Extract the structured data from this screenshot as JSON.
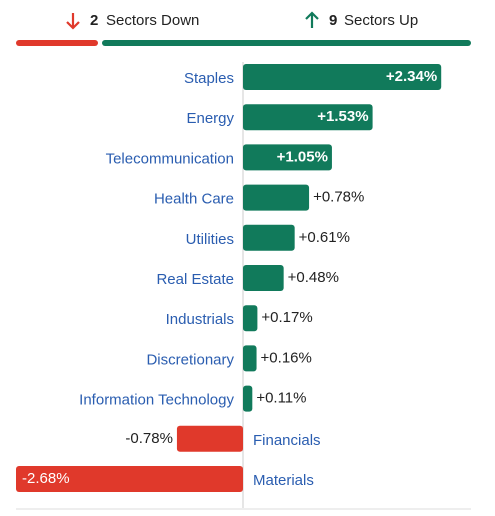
{
  "header": {
    "down": {
      "count": 2,
      "label": "Sectors Down",
      "color": "#e0392b"
    },
    "up": {
      "count": 9,
      "label": "Sectors Up",
      "color": "#117a5b"
    }
  },
  "chart_data": {
    "type": "bar",
    "orientation": "horizontal",
    "categories": [
      "Staples",
      "Energy",
      "Telecommunication",
      "Health Care",
      "Utilities",
      "Real Estate",
      "Industrials",
      "Discretionary",
      "Information Technology",
      "Financials",
      "Materials"
    ],
    "values": [
      2.34,
      1.53,
      1.05,
      0.78,
      0.61,
      0.48,
      0.17,
      0.16,
      0.11,
      -0.78,
      -2.68
    ],
    "value_labels": [
      "+2.34%",
      "+1.53%",
      "+1.05%",
      "+0.78%",
      "+0.61%",
      "+0.48%",
      "+0.17%",
      "+0.16%",
      "+0.11%",
      "-0.78%",
      "-2.68%"
    ],
    "positive_color": "#117a5b",
    "negative_color": "#e0392b"
  }
}
